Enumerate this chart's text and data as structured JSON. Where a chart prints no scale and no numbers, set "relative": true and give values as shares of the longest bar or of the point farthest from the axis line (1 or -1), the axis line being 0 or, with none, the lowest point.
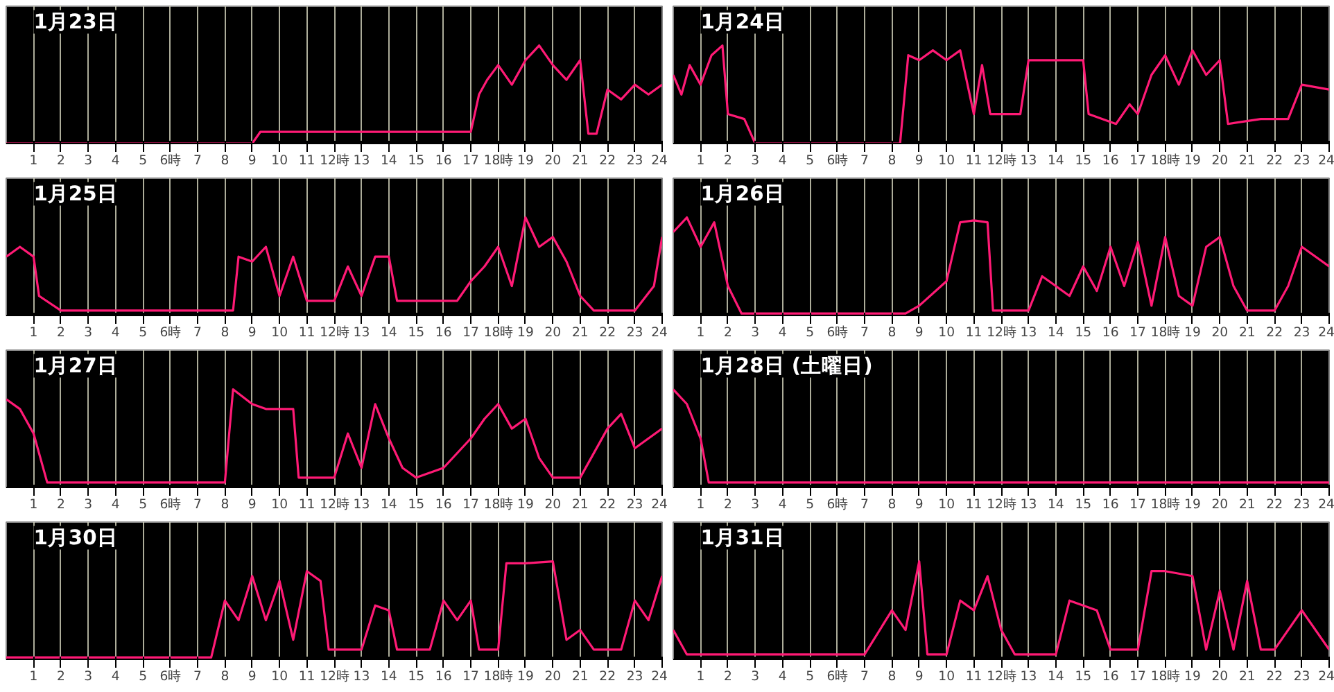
{
  "chart_data": [
    {
      "type": "line",
      "title": "1月23日",
      "relative": true,
      "grid": "x",
      "tick_labels": "x",
      "xlim": [
        0,
        24
      ],
      "xticks": [
        1,
        2,
        3,
        4,
        5,
        {
          "value": 6,
          "label": "6時"
        },
        7,
        8,
        9,
        10,
        11,
        {
          "value": 12,
          "label": "12時"
        },
        13,
        14,
        15,
        16,
        17,
        {
          "value": 18,
          "label": "18時"
        },
        19,
        20,
        21,
        22,
        23,
        24
      ],
      "x": [
        0,
        9,
        9.3,
        17,
        17.3,
        17.6,
        18,
        18.5,
        19,
        19.5,
        20,
        20.5,
        21,
        21.3,
        21.6,
        22,
        22.5,
        23,
        23.5,
        24
      ],
      "series": [
        {
          "color": "#ff1a75",
          "values": [
            0,
            0,
            0.12,
            0.12,
            0.5,
            0.65,
            0.8,
            0.6,
            0.85,
            1.0,
            0.8,
            0.65,
            0.85,
            0.1,
            0.1,
            0.55,
            0.45,
            0.6,
            0.5,
            0.6
          ]
        }
      ]
    },
    {
      "type": "line",
      "title": "1月24日",
      "relative": true,
      "grid": "x",
      "tick_labels": "x",
      "xlim": [
        0,
        24
      ],
      "xticks": [
        1,
        2,
        3,
        4,
        5,
        {
          "value": 6,
          "label": "6時"
        },
        7,
        8,
        9,
        10,
        11,
        {
          "value": 12,
          "label": "12時"
        },
        13,
        14,
        15,
        16,
        17,
        {
          "value": 18,
          "label": "18時"
        },
        19,
        20,
        21,
        22,
        23,
        24
      ],
      "x": [
        0,
        0.3,
        0.6,
        1,
        1.4,
        1.8,
        2,
        2.6,
        3,
        8.3,
        8.6,
        9,
        9.5,
        10,
        10.5,
        11,
        11.3,
        11.6,
        12.7,
        13,
        14,
        15,
        15.2,
        16.2,
        16.7,
        17,
        17.5,
        18,
        18.5,
        19,
        19.5,
        20,
        20.3,
        21.5,
        22.5,
        23,
        24
      ],
      "series": [
        {
          "color": "#ff1a75",
          "values": [
            0.7,
            0.5,
            0.8,
            0.6,
            0.9,
            1.0,
            0.3,
            0.25,
            0,
            0,
            0.9,
            0.85,
            0.95,
            0.85,
            0.95,
            0.3,
            0.8,
            0.3,
            0.3,
            0.85,
            0.85,
            0.85,
            0.3,
            0.2,
            0.4,
            0.3,
            0.7,
            0.9,
            0.6,
            0.95,
            0.7,
            0.85,
            0.2,
            0.25,
            0.25,
            0.6,
            0.55
          ]
        }
      ]
    },
    {
      "type": "line",
      "title": "1月25日",
      "relative": true,
      "grid": "x",
      "tick_labels": "x",
      "xlim": [
        0,
        24
      ],
      "xticks": [
        1,
        2,
        3,
        4,
        5,
        {
          "value": 6,
          "label": "6時"
        },
        7,
        8,
        9,
        10,
        11,
        {
          "value": 12,
          "label": "12時"
        },
        13,
        14,
        15,
        16,
        17,
        {
          "value": 18,
          "label": "18時"
        },
        19,
        20,
        21,
        22,
        23,
        24
      ],
      "x": [
        0,
        0.5,
        1,
        1.2,
        2,
        8.3,
        8.5,
        9,
        9.5,
        10,
        10.5,
        11,
        12,
        12.5,
        13,
        13.5,
        14,
        14.3,
        16.5,
        17,
        17.5,
        18,
        18.5,
        19,
        19.5,
        20,
        20.5,
        21,
        21.5,
        23,
        23.7,
        24
      ],
      "series": [
        {
          "color": "#ff1a75",
          "values": [
            0.6,
            0.7,
            0.6,
            0.2,
            0.05,
            0.05,
            0.6,
            0.55,
            0.7,
            0.2,
            0.6,
            0.15,
            0.15,
            0.5,
            0.2,
            0.6,
            0.6,
            0.15,
            0.15,
            0.35,
            0.5,
            0.7,
            0.3,
            1.0,
            0.7,
            0.8,
            0.55,
            0.2,
            0.05,
            0.05,
            0.3,
            0.8
          ]
        }
      ]
    },
    {
      "type": "line",
      "title": "1月26日",
      "relative": true,
      "grid": "x",
      "tick_labels": "x",
      "xlim": [
        0,
        24
      ],
      "xticks": [
        1,
        2,
        3,
        4,
        5,
        {
          "value": 6,
          "label": "6時"
        },
        7,
        8,
        9,
        10,
        11,
        {
          "value": 12,
          "label": "12時"
        },
        13,
        14,
        15,
        16,
        17,
        {
          "value": 18,
          "label": "18時"
        },
        19,
        20,
        21,
        22,
        23,
        24
      ],
      "x": [
        0,
        0.5,
        1,
        1.5,
        2,
        2.5,
        8.5,
        9,
        10,
        10.5,
        11,
        11.5,
        11.7,
        13,
        13.5,
        14,
        14.5,
        15,
        15.5,
        16,
        16.5,
        17,
        17.5,
        18,
        18.5,
        19,
        19.5,
        20,
        20.5,
        21,
        22,
        22.5,
        23,
        24
      ],
      "series": [
        {
          "color": "#ff1a75",
          "values": [
            0.85,
            1.0,
            0.7,
            0.95,
            0.3,
            0.02,
            0.02,
            0.1,
            0.35,
            0.95,
            0.97,
            0.95,
            0.05,
            0.05,
            0.4,
            0.3,
            0.2,
            0.5,
            0.25,
            0.7,
            0.3,
            0.75,
            0.1,
            0.8,
            0.2,
            0.1,
            0.7,
            0.8,
            0.3,
            0.05,
            0.05,
            0.3,
            0.7,
            0.5
          ]
        }
      ]
    },
    {
      "type": "line",
      "title": "1月27日",
      "relative": true,
      "grid": "x",
      "tick_labels": "x",
      "xlim": [
        0,
        24
      ],
      "xticks": [
        1,
        2,
        3,
        4,
        5,
        {
          "value": 6,
          "label": "6時"
        },
        7,
        8,
        9,
        10,
        11,
        {
          "value": 12,
          "label": "12時"
        },
        13,
        14,
        15,
        16,
        17,
        {
          "value": 18,
          "label": "18時"
        },
        19,
        20,
        21,
        22,
        23,
        24
      ],
      "x": [
        0,
        0.5,
        1,
        1.5,
        8,
        8.3,
        9,
        9.5,
        10,
        10.5,
        10.7,
        12,
        12.5,
        13,
        13.5,
        14,
        14.5,
        15,
        16,
        17,
        17.5,
        18,
        18.5,
        19,
        19.5,
        20,
        21,
        22,
        22.5,
        23,
        24
      ],
      "series": [
        {
          "color": "#ff1a75",
          "values": [
            0.9,
            0.8,
            0.55,
            0.05,
            0.05,
            1.0,
            0.85,
            0.8,
            0.8,
            0.8,
            0.1,
            0.1,
            0.55,
            0.2,
            0.85,
            0.5,
            0.2,
            0.1,
            0.2,
            0.5,
            0.7,
            0.85,
            0.6,
            0.7,
            0.3,
            0.1,
            0.1,
            0.6,
            0.75,
            0.4,
            0.6
          ]
        }
      ]
    },
    {
      "type": "line",
      "title": "1月28日 (土曜日)",
      "relative": true,
      "grid": "x",
      "tick_labels": "x",
      "xlim": [
        0,
        24
      ],
      "xticks": [
        1,
        2,
        3,
        4,
        5,
        {
          "value": 6,
          "label": "6時"
        },
        7,
        8,
        9,
        10,
        11,
        {
          "value": 12,
          "label": "12時"
        },
        13,
        14,
        15,
        16,
        17,
        {
          "value": 18,
          "label": "18時"
        },
        19,
        20,
        21,
        22,
        23,
        24
      ],
      "x": [
        0,
        0.5,
        1,
        1.3,
        24
      ],
      "series": [
        {
          "color": "#ff1a75",
          "values": [
            1.0,
            0.85,
            0.5,
            0.05,
            0.05
          ]
        }
      ]
    },
    {
      "type": "line",
      "title": "1月30日",
      "relative": true,
      "grid": "x",
      "tick_labels": "x",
      "xlim": [
        0,
        24
      ],
      "xticks": [
        1,
        2,
        3,
        4,
        5,
        {
          "value": 6,
          "label": "6時"
        },
        7,
        8,
        9,
        10,
        11,
        {
          "value": 12,
          "label": "12時"
        },
        13,
        14,
        15,
        16,
        17,
        {
          "value": 18,
          "label": "18時"
        },
        19,
        20,
        21,
        22,
        23,
        24
      ],
      "x": [
        0,
        7.5,
        8,
        8.5,
        9,
        9.5,
        10,
        10.5,
        11,
        11.5,
        11.8,
        13,
        13.5,
        14,
        14.3,
        15.5,
        16,
        16.5,
        17,
        17.3,
        18,
        18.3,
        19,
        20,
        20.5,
        21,
        21.5,
        22.5,
        23,
        23.5,
        24
      ],
      "series": [
        {
          "color": "#ff1a75",
          "values": [
            0.02,
            0.02,
            0.6,
            0.4,
            0.85,
            0.4,
            0.8,
            0.2,
            0.9,
            0.8,
            0.1,
            0.1,
            0.55,
            0.5,
            0.1,
            0.1,
            0.6,
            0.4,
            0.6,
            0.1,
            0.1,
            0.98,
            0.98,
            1.0,
            0.2,
            0.3,
            0.1,
            0.1,
            0.6,
            0.4,
            0.85
          ]
        }
      ]
    },
    {
      "type": "line",
      "title": "1月31日",
      "relative": true,
      "grid": "x",
      "tick_labels": "x",
      "xlim": [
        0,
        24
      ],
      "xticks": [
        1,
        2,
        3,
        4,
        5,
        {
          "value": 6,
          "label": "6時"
        },
        7,
        8,
        9,
        10,
        11,
        {
          "value": 12,
          "label": "12時"
        },
        13,
        14,
        15,
        16,
        17,
        {
          "value": 18,
          "label": "18時"
        },
        19,
        20,
        21,
        22,
        23,
        24
      ],
      "x": [
        0,
        0.5,
        7,
        8,
        8.5,
        9,
        9.3,
        10,
        10.5,
        11,
        11.5,
        12,
        12.5,
        14,
        14.5,
        15,
        15.5,
        16,
        17,
        17.5,
        18,
        19,
        19.5,
        20,
        20.5,
        21,
        21.5,
        22,
        23,
        24
      ],
      "series": [
        {
          "color": "#ff1a75",
          "values": [
            0.3,
            0.05,
            0.05,
            0.5,
            0.3,
            1.0,
            0.05,
            0.05,
            0.6,
            0.5,
            0.85,
            0.3,
            0.05,
            0.05,
            0.6,
            0.55,
            0.5,
            0.1,
            0.1,
            0.9,
            0.9,
            0.85,
            0.1,
            0.7,
            0.1,
            0.8,
            0.1,
            0.1,
            0.5,
            0.1
          ]
        }
      ]
    }
  ]
}
